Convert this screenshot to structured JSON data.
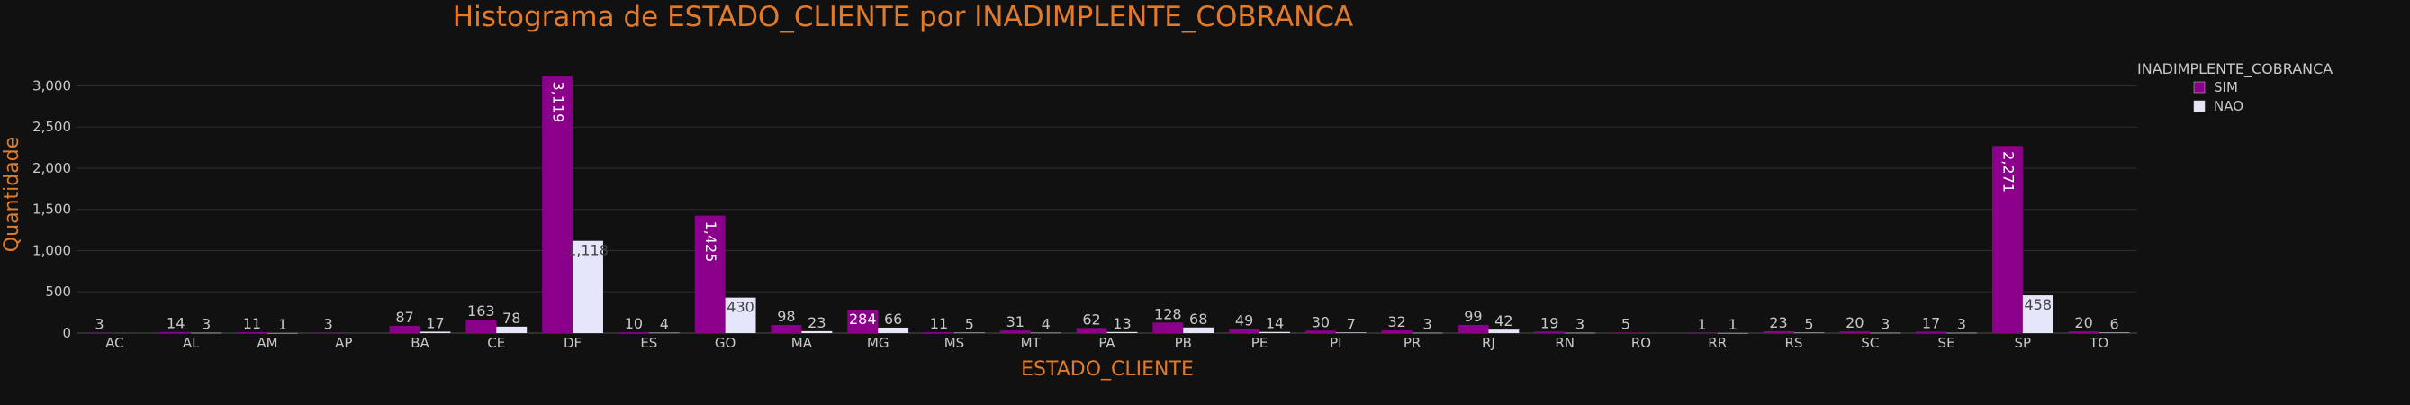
{
  "chart_data": {
    "type": "bar",
    "title": "Histograma de ESTADO_CLIENTE por INADIMPLENTE_COBRANCA",
    "xlabel": "ESTADO_CLIENTE",
    "ylabel": "Quantidade",
    "ylim": [
      0,
      3300
    ],
    "yticks": [
      "0",
      "500",
      "1,000",
      "1,500",
      "2,000",
      "2,500",
      "3,000"
    ],
    "grid": true,
    "legend": {
      "title": "INADIMPLENTE_COBRANCA",
      "placement": "top-right"
    },
    "categories": [
      "AC",
      "AL",
      "AM",
      "AP",
      "BA",
      "CE",
      "DF",
      "ES",
      "GO",
      "MA",
      "MG",
      "MS",
      "MT",
      "PA",
      "PB",
      "PE",
      "PI",
      "PR",
      "RJ",
      "RN",
      "RO",
      "RR",
      "RS",
      "SC",
      "SE",
      "SP",
      "TO"
    ],
    "series": [
      {
        "name": "SIM",
        "color": "#8b008b",
        "label_color": "#ffffff",
        "values": [
          3,
          14,
          11,
          3,
          87,
          163,
          3119,
          10,
          1425,
          98,
          284,
          11,
          31,
          62,
          128,
          49,
          30,
          32,
          99,
          19,
          5,
          1,
          23,
          20,
          17,
          2271,
          20
        ],
        "labels": [
          "3",
          "14",
          "11",
          "3",
          "87",
          "163",
          "3,119",
          "10",
          "1,425",
          "98",
          "284",
          "11",
          "31",
          "62",
          "128",
          "49",
          "30",
          "32",
          "99",
          "19",
          "5",
          "1",
          "23",
          "20",
          "17",
          "2,271",
          "20"
        ]
      },
      {
        "name": "NAO",
        "color": "#e6e6fa",
        "label_color": "#444444",
        "values": [
          null,
          3,
          1,
          null,
          17,
          78,
          1118,
          4,
          430,
          23,
          66,
          5,
          4,
          13,
          68,
          14,
          7,
          3,
          42,
          3,
          null,
          1,
          5,
          3,
          3,
          458,
          6
        ],
        "labels": [
          "",
          "3",
          "1",
          "",
          "17",
          "78",
          "1,118",
          "4",
          "430",
          "23",
          "66",
          "5",
          "4",
          "13",
          "68",
          "14",
          "7",
          "3",
          "42",
          "3",
          "",
          "1",
          "5",
          "3",
          "3",
          "458",
          "6"
        ]
      }
    ]
  }
}
